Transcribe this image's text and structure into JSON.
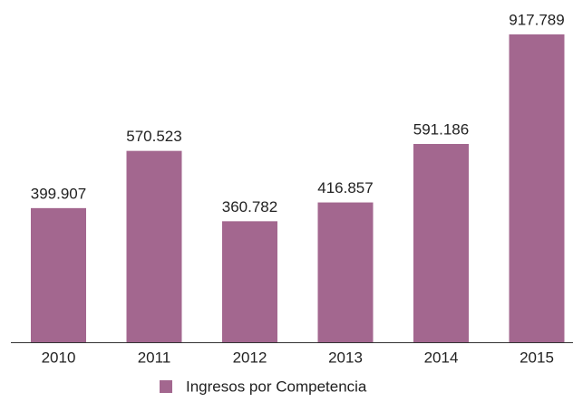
{
  "chart_data": {
    "type": "bar",
    "categories": [
      "2010",
      "2011",
      "2012",
      "2013",
      "2014",
      "2015"
    ],
    "series": [
      {
        "name": "Ingresos por Competencia",
        "color": "#a3678f",
        "values": [
          399907,
          570523,
          360782,
          416857,
          591186,
          917789
        ],
        "value_labels": [
          "399.907",
          "570.523",
          "360.782",
          "416.857",
          "591.186",
          "917.789"
        ]
      }
    ]
  }
}
